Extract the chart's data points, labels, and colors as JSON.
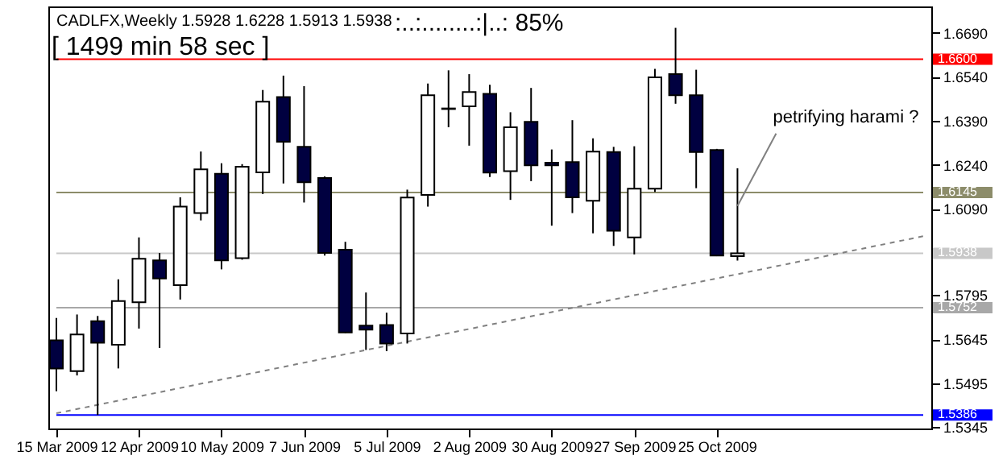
{
  "chart_data": {
    "type": "candlestick",
    "title": "CADLFX,Weekly  1.5928 1.6228 1.5913 1.5938",
    "subtitle": "[ 1499 min 58 sec ]",
    "annotations": [
      ":..:........:|..:  85%",
      {
        "text": "petrifying harami ?",
        "x": "2009-11-01",
        "y": 1.6099
      }
    ],
    "colors": [
      "#000040",
      "#ffffff",
      "#000040",
      "#ffffff",
      "#ffffff",
      "#000040",
      "#ffffff",
      "#ffffff",
      "#000040",
      "#ffffff",
      "#ffffff",
      "#000040",
      "#000040",
      "#000040",
      "#000040",
      "#000040",
      "#000040",
      "#ffffff",
      "#ffffff",
      "#000040",
      "#ffffff",
      "#000040",
      "#ffffff",
      "#000040",
      "#000040",
      "#000040",
      "#ffffff",
      "#000040",
      "#ffffff",
      "#ffffff",
      "#000040",
      "#000040",
      "#000040",
      "#ffffff"
    ],
    "x": [
      "2009-03-15",
      "2009-03-22",
      "2009-03-29",
      "2009-04-05",
      "2009-04-12",
      "2009-04-19",
      "2009-04-26",
      "2009-05-03",
      "2009-05-10",
      "2009-05-17",
      "2009-05-24",
      "2009-05-31",
      "2009-06-07",
      "2009-06-14",
      "2009-06-21",
      "2009-06-28",
      "2009-07-05",
      "2009-07-12",
      "2009-07-19",
      "2009-07-26",
      "2009-08-02",
      "2009-08-09",
      "2009-08-16",
      "2009-08-23",
      "2009-08-30",
      "2009-09-06",
      "2009-09-13",
      "2009-09-20",
      "2009-09-27",
      "2009-10-04",
      "2009-10-11",
      "2009-10-18",
      "2009-10-25",
      "2009-11-01"
    ],
    "ohlc": [
      [
        1.5641,
        1.5717,
        1.5467,
        1.5545
      ],
      [
        1.5536,
        1.5729,
        1.5521,
        1.5661
      ],
      [
        1.5706,
        1.5724,
        1.5386,
        1.5633
      ],
      [
        1.5626,
        1.5849,
        1.5545,
        1.5775
      ],
      [
        1.5771,
        1.5992,
        1.5681,
        1.5919
      ],
      [
        1.5914,
        1.5939,
        1.5615,
        1.5852
      ],
      [
        1.5829,
        1.6129,
        1.578,
        1.6097
      ],
      [
        1.6075,
        1.6285,
        1.605,
        1.6224
      ],
      [
        1.6209,
        1.6245,
        1.5883,
        1.5914
      ],
      [
        1.5921,
        1.6242,
        1.5916,
        1.6233
      ],
      [
        1.6214,
        1.6495,
        1.614,
        1.6455
      ],
      [
        1.6471,
        1.6544,
        1.6176,
        1.6318
      ],
      [
        1.6301,
        1.6508,
        1.6111,
        1.618
      ],
      [
        1.6195,
        1.62,
        1.593,
        1.5939
      ],
      [
        1.595,
        1.5977,
        1.5666,
        1.5668
      ],
      [
        1.5691,
        1.5804,
        1.5608,
        1.5677
      ],
      [
        1.5693,
        1.5735,
        1.5604,
        1.563
      ],
      [
        1.5664,
        1.6155,
        1.563,
        1.6128
      ],
      [
        1.6137,
        1.6517,
        1.6097,
        1.6477
      ],
      [
        1.6432,
        1.6562,
        1.6368,
        1.643
      ],
      [
        1.6439,
        1.6549,
        1.6305,
        1.6488
      ],
      [
        1.6482,
        1.6513,
        1.6198,
        1.6213
      ],
      [
        1.6218,
        1.6419,
        1.612,
        1.6368
      ],
      [
        1.6386,
        1.6502,
        1.6184,
        1.6238
      ],
      [
        1.6247,
        1.6292,
        1.6032,
        1.6238
      ],
      [
        1.6249,
        1.6392,
        1.6075,
        1.6129
      ],
      [
        1.6117,
        1.633,
        1.6006,
        1.6285
      ],
      [
        1.6283,
        1.6301,
        1.5963,
        1.6015
      ],
      [
        1.5992,
        1.6303,
        1.5934,
        1.6158
      ],
      [
        1.6158,
        1.6567,
        1.6147,
        1.6538
      ],
      [
        1.6549,
        1.6707,
        1.6448,
        1.6477
      ],
      [
        1.6477,
        1.6564,
        1.616,
        1.6283
      ],
      [
        1.629,
        1.6294,
        1.5928,
        1.593
      ],
      [
        1.5928,
        1.6228,
        1.5913,
        1.5938
      ]
    ],
    "series": [
      {
        "type": "line",
        "color": "#808080",
        "line_style": "dashed",
        "x": [
          "2009-03-15",
          "2010-01-03"
        ],
        "values": [
          1.5392,
          1.5996
        ]
      }
    ],
    "xlim": [
      "2009-03-15",
      "2010-01-03"
    ],
    "xticks": [
      {
        "value": "2009-03-15",
        "label": "15 Mar 2009"
      },
      {
        "value": "2009-04-12",
        "label": "12 Apr 2009"
      },
      {
        "value": "2009-05-10",
        "label": "10 May 2009"
      },
      {
        "value": "2009-06-07",
        "label": "7 Jun 2009"
      },
      {
        "value": "2009-07-05",
        "label": "5 Jul 2009"
      },
      {
        "value": "2009-08-02",
        "label": "2 Aug 2009"
      },
      {
        "value": "2009-08-30",
        "label": "30 Aug 2009"
      },
      {
        "value": "2009-09-27",
        "label": "27 Sep 2009"
      },
      {
        "value": "2009-10-25",
        "label": "25 Oct 2009"
      }
    ],
    "ylim": [
      1.534,
      1.678
    ],
    "yticks": [
      {
        "value": 1.5345,
        "label": "1.5345"
      },
      {
        "value": 1.5495,
        "label": "1.5495"
      },
      {
        "value": 1.5645,
        "label": "1.5645"
      },
      {
        "value": 1.5795,
        "label": "1.5795"
      },
      {
        "value": 1.609,
        "label": "1.6090"
      },
      {
        "value": 1.624,
        "label": "1.6240"
      },
      {
        "value": 1.639,
        "label": "1.6390"
      },
      {
        "value": 1.654,
        "label": "1.6540"
      },
      {
        "value": 1.669,
        "label": "1.6690"
      }
    ],
    "ref_lines": [
      {
        "axis": "y",
        "value": 1.66,
        "label": "1.6600",
        "color": "#ff0000"
      },
      {
        "axis": "y",
        "value": 1.6145,
        "label": "1.6145",
        "color": "#8c8c6a"
      },
      {
        "axis": "y",
        "value": 1.5938,
        "label": "1.5938",
        "color": "#c8c8c8"
      },
      {
        "axis": "y",
        "value": 1.5752,
        "label": "1.5752",
        "color": "#a8a8a8"
      },
      {
        "axis": "y",
        "value": 1.5386,
        "label": "1.5386",
        "color": "#0000ff"
      }
    ],
    "grid": false
  }
}
